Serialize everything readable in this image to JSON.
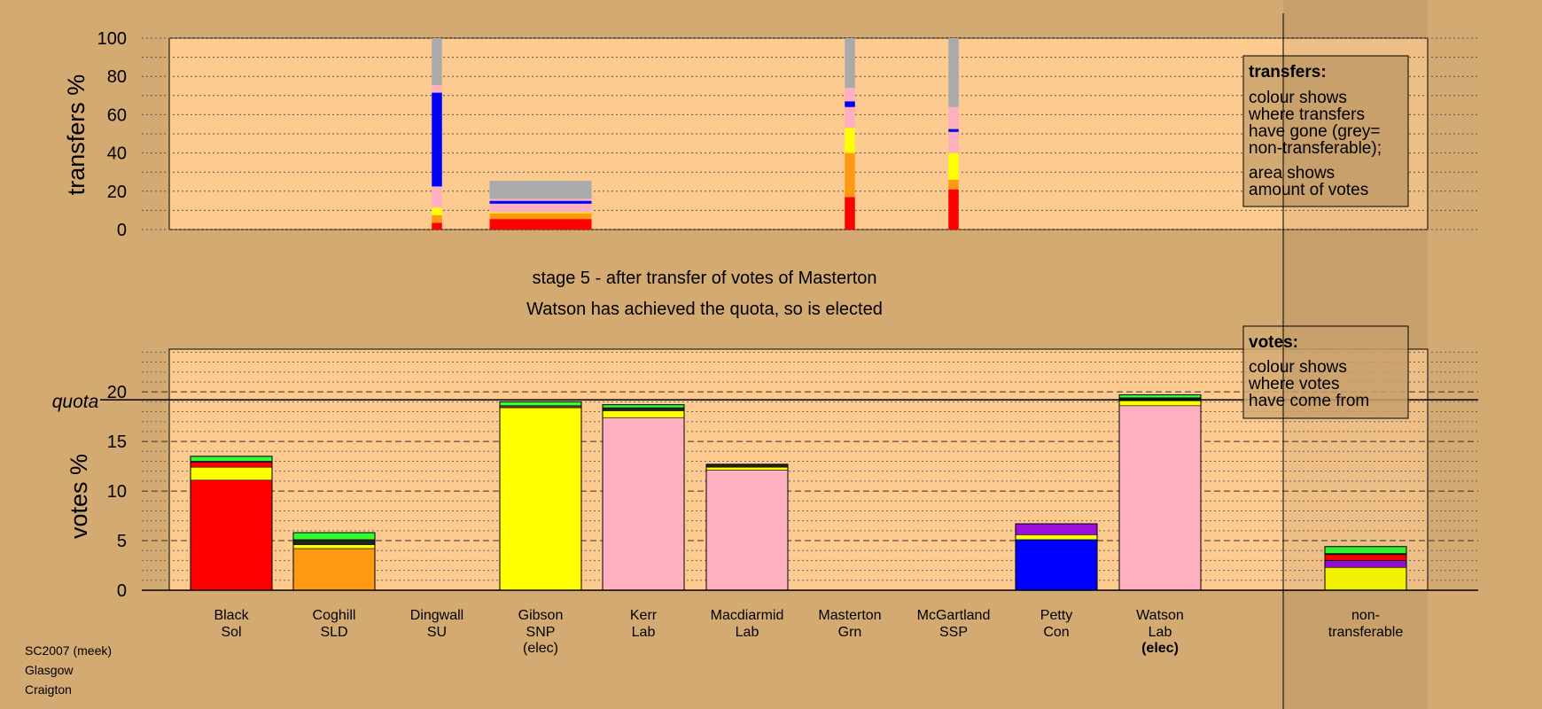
{
  "colors": {
    "background": "#d4aa73",
    "plot": "#fdca90",
    "Sol": "#ff0000",
    "SLD": "#ff9912",
    "SNP": "#ffff00",
    "Lab": "#ffb0c0",
    "Con": "#0000ff",
    "Grn": "#33ff33",
    "SSP": "#9a0fe0",
    "SU": "#7a3a1a",
    "other": "#222222",
    "nontransferable": "#aaaaaa"
  },
  "header": {
    "stage": "stage 5 - after transfer of votes of Masterton",
    "elected_note": "Watson has achieved the quota, so is elected"
  },
  "footer": {
    "election": "SC2007 (meek)",
    "council": "Glasgow",
    "ward": "Craigton"
  },
  "legend_transfers": {
    "title": "transfers:",
    "lines": [
      "colour shows",
      "where transfers",
      "have gone (grey=",
      "non-transferable);"
    ],
    "lines2": [
      "area shows",
      "amount of votes"
    ]
  },
  "legend_votes": {
    "title": "votes:",
    "lines": [
      "colour shows",
      "where votes",
      "have come from"
    ]
  },
  "chart_data": [
    {
      "type": "bar",
      "subtype": "stacked",
      "ylabel": "transfers %",
      "ylim": [
        0,
        100
      ],
      "yticks": [
        0,
        20,
        40,
        60,
        80,
        100
      ],
      "grid": "dotted every 10",
      "bars": [
        {
          "candidate": "Dingwall",
          "width_share": 0.1,
          "segments": [
            {
              "color": "Sol",
              "value": 3.5
            },
            {
              "color": "SLD",
              "value": 4
            },
            {
              "color": "SNP",
              "value": 4
            },
            {
              "color": "Lab",
              "value": 11
            },
            {
              "color": "Con",
              "value": 49
            },
            {
              "color": "Lab",
              "value": 4
            },
            {
              "color": "nontransferable",
              "value": 24.5
            }
          ]
        },
        {
          "candidate": "Gibson",
          "width_share": 1.0,
          "segments": [
            {
              "color": "Sol",
              "value": 5.5
            },
            {
              "color": "SLD",
              "value": 3
            },
            {
              "color": "SNP",
              "value": 0.5
            },
            {
              "color": "Lab",
              "value": 4.5
            },
            {
              "color": "Con",
              "value": 1.5
            },
            {
              "color": "Lab",
              "value": 1
            },
            {
              "color": "nontransferable",
              "value": 9.5
            }
          ]
        },
        {
          "candidate": "Masterton",
          "width_share": 0.1,
          "segments": [
            {
              "color": "Sol",
              "value": 17
            },
            {
              "color": "SLD",
              "value": 23
            },
            {
              "color": "SNP",
              "value": 13
            },
            {
              "color": "Lab",
              "value": 11
            },
            {
              "color": "Con",
              "value": 3
            },
            {
              "color": "Lab",
              "value": 7
            },
            {
              "color": "nontransferable",
              "value": 26
            }
          ]
        },
        {
          "candidate": "McGartland",
          "width_share": 0.1,
          "segments": [
            {
              "color": "Sol",
              "value": 21
            },
            {
              "color": "SLD",
              "value": 5
            },
            {
              "color": "SNP",
              "value": 14
            },
            {
              "color": "Lab",
              "value": 11
            },
            {
              "color": "Con",
              "value": 1.5
            },
            {
              "color": "Lab",
              "value": 11.5
            },
            {
              "color": "nontransferable",
              "value": 36
            }
          ]
        }
      ]
    },
    {
      "type": "bar",
      "subtype": "stacked",
      "ylabel": "votes %",
      "ylim": [
        0,
        25
      ],
      "yticks": [
        0,
        5,
        10,
        15,
        20
      ],
      "quota": 19.2,
      "quota_label": "quota",
      "grid": "dotted every 1, dashed every 5",
      "candidates": [
        {
          "name": "Black",
          "party": "Sol",
          "status": "",
          "segments": [
            {
              "color": "Sol",
              "value": 11.1
            },
            {
              "color": "SNP",
              "value": 1.3
            },
            {
              "color": "Sol",
              "value": 0.5
            },
            {
              "color": "SSP",
              "value": 0.1
            },
            {
              "color": "Grn",
              "value": 0.5
            }
          ]
        },
        {
          "name": "Coghill",
          "party": "SLD",
          "status": "",
          "segments": [
            {
              "color": "SLD",
              "value": 4.2
            },
            {
              "color": "SNP",
              "value": 0.4
            },
            {
              "color": "other",
              "value": 0.5
            },
            {
              "color": "Grn",
              "value": 0.7
            }
          ]
        },
        {
          "name": "Dingwall",
          "party": "SU",
          "status": "",
          "segments": []
        },
        {
          "name": "Gibson",
          "party": "SNP",
          "status": "(elec)",
          "segments": [
            {
              "color": "SNP",
              "value": 18.4
            },
            {
              "color": "SU",
              "value": 0.2
            },
            {
              "color": "Grn",
              "value": 0.4
            }
          ]
        },
        {
          "name": "Kerr",
          "party": "Lab",
          "status": "",
          "segments": [
            {
              "color": "Lab",
              "value": 17.4
            },
            {
              "color": "SNP",
              "value": 0.7
            },
            {
              "color": "other",
              "value": 0.3
            },
            {
              "color": "Grn",
              "value": 0.3
            }
          ]
        },
        {
          "name": "Macdiarmid",
          "party": "Lab",
          "status": "",
          "segments": [
            {
              "color": "Lab",
              "value": 12.1
            },
            {
              "color": "SNP",
              "value": 0.3
            },
            {
              "color": "other",
              "value": 0.3
            }
          ]
        },
        {
          "name": "Masterton",
          "party": "Grn",
          "status": "",
          "segments": []
        },
        {
          "name": "McGartland",
          "party": "SSP",
          "status": "",
          "segments": []
        },
        {
          "name": "Petty",
          "party": "Con",
          "status": "",
          "segments": [
            {
              "color": "Con",
              "value": 5.1
            },
            {
              "color": "SNP",
              "value": 0.5
            },
            {
              "color": "SSP",
              "value": 1.1
            }
          ]
        },
        {
          "name": "Watson",
          "party": "Lab",
          "status": "(elec)",
          "status_bold": true,
          "segments": [
            {
              "color": "Lab",
              "value": 18.6
            },
            {
              "color": "SNP",
              "value": 0.5
            },
            {
              "color": "other",
              "value": 0.3
            },
            {
              "color": "Grn",
              "value": 0.3
            }
          ]
        },
        {
          "name": "non-",
          "party": "transferable",
          "status": "",
          "segments": [
            {
              "color": "SNP",
              "value": 2.3
            },
            {
              "color": "SSP",
              "value": 0.7
            },
            {
              "color": "Sol",
              "value": 0.6
            },
            {
              "color": "other",
              "value": 0.1
            },
            {
              "color": "Grn",
              "value": 0.7
            }
          ]
        }
      ]
    }
  ]
}
